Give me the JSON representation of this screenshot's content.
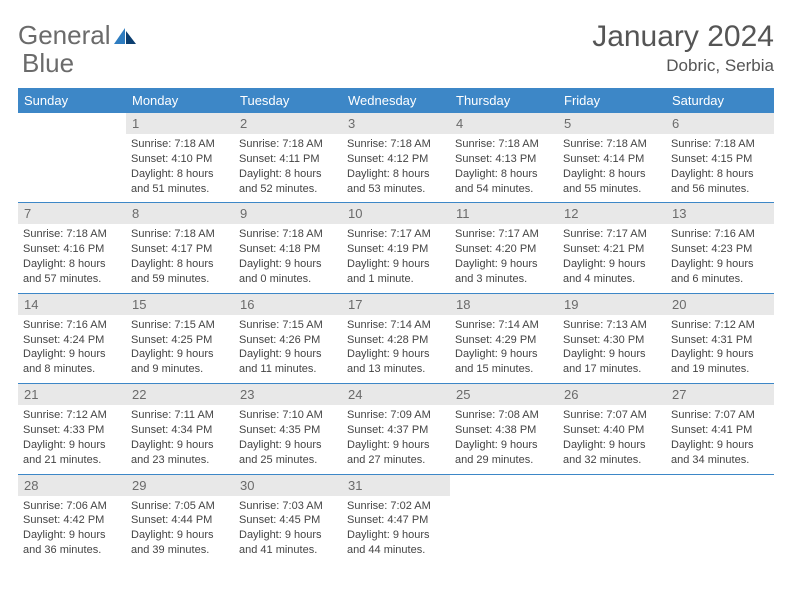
{
  "brand": {
    "word1": "General",
    "word2": "Blue"
  },
  "title": "January 2024",
  "location": "Dobric, Serbia",
  "colors": {
    "header_bg": "#3d87c7",
    "header_fg": "#ffffff",
    "daynum_bg": "#e8e8e8",
    "daynum_fg": "#6b6b6b",
    "rule": "#3d87c7",
    "text": "#444444"
  },
  "daysOfWeek": [
    "Sunday",
    "Monday",
    "Tuesday",
    "Wednesday",
    "Thursday",
    "Friday",
    "Saturday"
  ],
  "weeks": [
    {
      "nums": [
        "",
        "1",
        "2",
        "3",
        "4",
        "5",
        "6"
      ],
      "cells": [
        null,
        {
          "sunrise": "Sunrise: 7:18 AM",
          "sunset": "Sunset: 4:10 PM",
          "day1": "Daylight: 8 hours",
          "day2": "and 51 minutes."
        },
        {
          "sunrise": "Sunrise: 7:18 AM",
          "sunset": "Sunset: 4:11 PM",
          "day1": "Daylight: 8 hours",
          "day2": "and 52 minutes."
        },
        {
          "sunrise": "Sunrise: 7:18 AM",
          "sunset": "Sunset: 4:12 PM",
          "day1": "Daylight: 8 hours",
          "day2": "and 53 minutes."
        },
        {
          "sunrise": "Sunrise: 7:18 AM",
          "sunset": "Sunset: 4:13 PM",
          "day1": "Daylight: 8 hours",
          "day2": "and 54 minutes."
        },
        {
          "sunrise": "Sunrise: 7:18 AM",
          "sunset": "Sunset: 4:14 PM",
          "day1": "Daylight: 8 hours",
          "day2": "and 55 minutes."
        },
        {
          "sunrise": "Sunrise: 7:18 AM",
          "sunset": "Sunset: 4:15 PM",
          "day1": "Daylight: 8 hours",
          "day2": "and 56 minutes."
        }
      ]
    },
    {
      "nums": [
        "7",
        "8",
        "9",
        "10",
        "11",
        "12",
        "13"
      ],
      "cells": [
        {
          "sunrise": "Sunrise: 7:18 AM",
          "sunset": "Sunset: 4:16 PM",
          "day1": "Daylight: 8 hours",
          "day2": "and 57 minutes."
        },
        {
          "sunrise": "Sunrise: 7:18 AM",
          "sunset": "Sunset: 4:17 PM",
          "day1": "Daylight: 8 hours",
          "day2": "and 59 minutes."
        },
        {
          "sunrise": "Sunrise: 7:18 AM",
          "sunset": "Sunset: 4:18 PM",
          "day1": "Daylight: 9 hours",
          "day2": "and 0 minutes."
        },
        {
          "sunrise": "Sunrise: 7:17 AM",
          "sunset": "Sunset: 4:19 PM",
          "day1": "Daylight: 9 hours",
          "day2": "and 1 minute."
        },
        {
          "sunrise": "Sunrise: 7:17 AM",
          "sunset": "Sunset: 4:20 PM",
          "day1": "Daylight: 9 hours",
          "day2": "and 3 minutes."
        },
        {
          "sunrise": "Sunrise: 7:17 AM",
          "sunset": "Sunset: 4:21 PM",
          "day1": "Daylight: 9 hours",
          "day2": "and 4 minutes."
        },
        {
          "sunrise": "Sunrise: 7:16 AM",
          "sunset": "Sunset: 4:23 PM",
          "day1": "Daylight: 9 hours",
          "day2": "and 6 minutes."
        }
      ]
    },
    {
      "nums": [
        "14",
        "15",
        "16",
        "17",
        "18",
        "19",
        "20"
      ],
      "cells": [
        {
          "sunrise": "Sunrise: 7:16 AM",
          "sunset": "Sunset: 4:24 PM",
          "day1": "Daylight: 9 hours",
          "day2": "and 8 minutes."
        },
        {
          "sunrise": "Sunrise: 7:15 AM",
          "sunset": "Sunset: 4:25 PM",
          "day1": "Daylight: 9 hours",
          "day2": "and 9 minutes."
        },
        {
          "sunrise": "Sunrise: 7:15 AM",
          "sunset": "Sunset: 4:26 PM",
          "day1": "Daylight: 9 hours",
          "day2": "and 11 minutes."
        },
        {
          "sunrise": "Sunrise: 7:14 AM",
          "sunset": "Sunset: 4:28 PM",
          "day1": "Daylight: 9 hours",
          "day2": "and 13 minutes."
        },
        {
          "sunrise": "Sunrise: 7:14 AM",
          "sunset": "Sunset: 4:29 PM",
          "day1": "Daylight: 9 hours",
          "day2": "and 15 minutes."
        },
        {
          "sunrise": "Sunrise: 7:13 AM",
          "sunset": "Sunset: 4:30 PM",
          "day1": "Daylight: 9 hours",
          "day2": "and 17 minutes."
        },
        {
          "sunrise": "Sunrise: 7:12 AM",
          "sunset": "Sunset: 4:31 PM",
          "day1": "Daylight: 9 hours",
          "day2": "and 19 minutes."
        }
      ]
    },
    {
      "nums": [
        "21",
        "22",
        "23",
        "24",
        "25",
        "26",
        "27"
      ],
      "cells": [
        {
          "sunrise": "Sunrise: 7:12 AM",
          "sunset": "Sunset: 4:33 PM",
          "day1": "Daylight: 9 hours",
          "day2": "and 21 minutes."
        },
        {
          "sunrise": "Sunrise: 7:11 AM",
          "sunset": "Sunset: 4:34 PM",
          "day1": "Daylight: 9 hours",
          "day2": "and 23 minutes."
        },
        {
          "sunrise": "Sunrise: 7:10 AM",
          "sunset": "Sunset: 4:35 PM",
          "day1": "Daylight: 9 hours",
          "day2": "and 25 minutes."
        },
        {
          "sunrise": "Sunrise: 7:09 AM",
          "sunset": "Sunset: 4:37 PM",
          "day1": "Daylight: 9 hours",
          "day2": "and 27 minutes."
        },
        {
          "sunrise": "Sunrise: 7:08 AM",
          "sunset": "Sunset: 4:38 PM",
          "day1": "Daylight: 9 hours",
          "day2": "and 29 minutes."
        },
        {
          "sunrise": "Sunrise: 7:07 AM",
          "sunset": "Sunset: 4:40 PM",
          "day1": "Daylight: 9 hours",
          "day2": "and 32 minutes."
        },
        {
          "sunrise": "Sunrise: 7:07 AM",
          "sunset": "Sunset: 4:41 PM",
          "day1": "Daylight: 9 hours",
          "day2": "and 34 minutes."
        }
      ]
    },
    {
      "nums": [
        "28",
        "29",
        "30",
        "31",
        "",
        "",
        ""
      ],
      "cells": [
        {
          "sunrise": "Sunrise: 7:06 AM",
          "sunset": "Sunset: 4:42 PM",
          "day1": "Daylight: 9 hours",
          "day2": "and 36 minutes."
        },
        {
          "sunrise": "Sunrise: 7:05 AM",
          "sunset": "Sunset: 4:44 PM",
          "day1": "Daylight: 9 hours",
          "day2": "and 39 minutes."
        },
        {
          "sunrise": "Sunrise: 7:03 AM",
          "sunset": "Sunset: 4:45 PM",
          "day1": "Daylight: 9 hours",
          "day2": "and 41 minutes."
        },
        {
          "sunrise": "Sunrise: 7:02 AM",
          "sunset": "Sunset: 4:47 PM",
          "day1": "Daylight: 9 hours",
          "day2": "and 44 minutes."
        },
        null,
        null,
        null
      ]
    }
  ]
}
